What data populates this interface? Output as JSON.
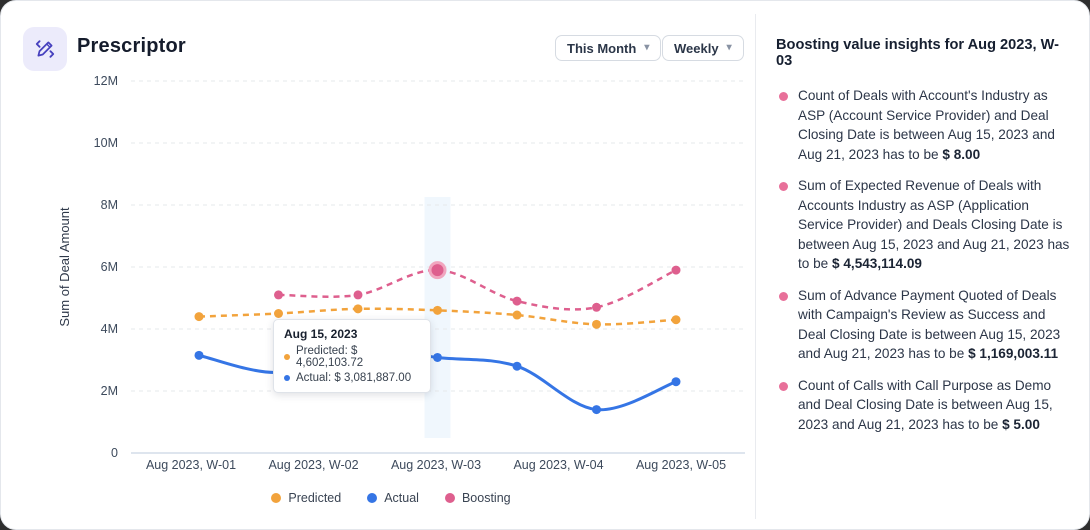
{
  "header": {
    "title": "Prescriptor",
    "icon": "edit-pencil-icon"
  },
  "filters": {
    "period": "This Month",
    "granularity": "Weekly"
  },
  "chart_data": {
    "type": "line",
    "title": "",
    "ylabel": "Sum of Deal Amount",
    "xlabel": "",
    "x_axis_labels": [
      "Aug 2023, W-01",
      "Aug 2023, W-02",
      "Aug 2023, W-03",
      "Aug 2023, W-04",
      "Aug 2023, W-05"
    ],
    "y_tick_labels": [
      "0",
      "2M",
      "4M",
      "6M",
      "8M",
      "10M",
      "12M"
    ],
    "ylim": [
      0,
      12000000
    ],
    "grid": "dashed-horizontal",
    "legend_position": "bottom-center",
    "points_per_series": 7,
    "highlight_point_index": 3,
    "highlight_label": "Aug 2023, W-03",
    "series": [
      {
        "name": "Predicted",
        "color": "#F2A33C",
        "line_style": "dashed",
        "values": [
          4400000,
          4500000,
          4650000,
          4602103.72,
          4450000,
          4150000,
          4300000
        ]
      },
      {
        "name": "Actual",
        "color": "#3575E5",
        "line_style": "solid",
        "values": [
          3150000,
          2600000,
          3400000,
          3081887.0,
          2800000,
          1400000,
          2300000
        ]
      },
      {
        "name": "Boosting",
        "color": "#DE5F8E",
        "line_style": "dashed",
        "values": [
          null,
          5100000,
          5100000,
          5900000,
          4900000,
          4700000,
          5900000
        ]
      }
    ]
  },
  "tooltip": {
    "title": "Aug 15, 2023",
    "rows": [
      {
        "label": "Predicted:",
        "value": "$ 4,602,103.72",
        "color": "#F2A33C"
      },
      {
        "label": "Actual:",
        "value": "$ 3,081,887.00",
        "color": "#3575E5"
      }
    ]
  },
  "insights": {
    "title": "Boosting value insights for Aug 2023, W-03",
    "bullet_color": "#E8709A",
    "items": [
      {
        "text": "Count of Deals with Account's Industry as ASP (Account Service Provider) and Deal Closing Date is between Aug 15,  2023 and Aug 21,  2023 has to be ",
        "value": "$ 8.00"
      },
      {
        "text": "Sum of Expected Revenue of Deals with Accounts Industry as ASP (Application Service Provider) and Deals Closing Date is between Aug 15,  2023 and Aug 21,  2023 has to be ",
        "value": "$ 4,543,114.09"
      },
      {
        "text": "Sum of Advance Payment Quoted of Deals with Campaign's Review as Success and Deal Closing Date is between Aug 15,  2023 and Aug 21,  2023 has to be ",
        "value": "$ 1,169,003.11"
      },
      {
        "text": "Count of Calls with Call Purpose as Demo and Deal Closing Date is between Aug 15,  2023 and Aug 21,  2023 has to be ",
        "value": "$ 5.00"
      }
    ]
  },
  "colors": {
    "accent_purple": "#4640BE",
    "icon_bg": "#ECEBFB",
    "grid_line": "#E6E8EB",
    "axis_line": "#C9D5E3",
    "axis_text": "#3D4A5C",
    "highlight_band": "#F0F7FD",
    "highlight_dot_ring": "#F1A6BF"
  }
}
